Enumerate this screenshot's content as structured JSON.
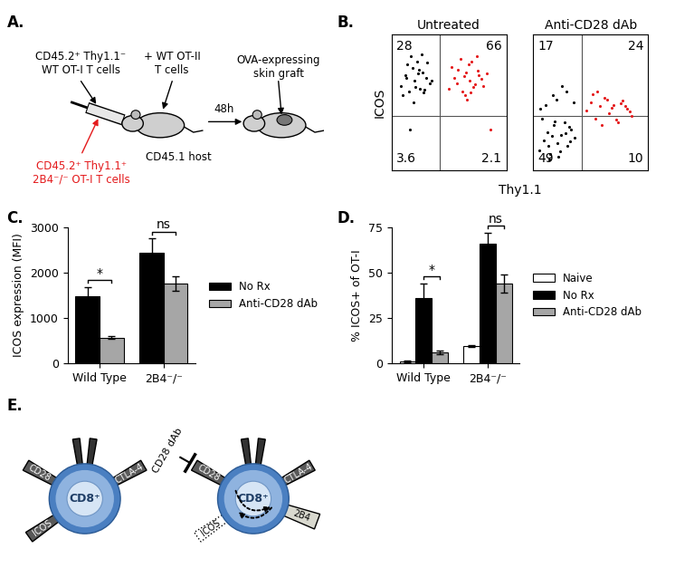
{
  "panel_labels": [
    "A.",
    "B.",
    "C.",
    "D.",
    "E."
  ],
  "diagram_a": {
    "wt_cells": [
      "CD45.2⁺ Thy1.1⁻",
      "WT OT-I T cells"
    ],
    "ko_cells": [
      "CD45.2⁺ Thy1.1⁺",
      "2B4⁻/⁻ OT-I T cells"
    ],
    "ko_color": "#e41a1c",
    "ot2_cells": [
      "+ WT OT-II",
      "T cells"
    ],
    "host": "CD45.1 host",
    "interval": "48h",
    "graft": [
      "OVA-expressing",
      "skin graft"
    ]
  },
  "panel_b": {
    "x_label": "Thy1.1",
    "y_label": "ICOS"
  },
  "chart_data": [
    {
      "type": "scatter",
      "title": "Untreated",
      "xlim": [
        0,
        100
      ],
      "ylim": [
        0,
        100
      ],
      "tick_labels": false,
      "gates": {
        "x": 42,
        "y": 40
      },
      "quadrant_labels": {
        "upper_left": 28,
        "upper_right": 66,
        "lower_left": 3.6,
        "lower_right": 2.1
      },
      "series": [
        {
          "color": "#000000",
          "x": [
            8,
            12,
            15,
            18,
            20,
            22,
            25,
            27,
            30,
            33,
            10,
            14,
            17,
            21,
            24,
            28,
            31,
            35,
            19,
            26,
            13,
            23,
            29,
            16
          ],
          "values": [
            62,
            70,
            58,
            75,
            66,
            80,
            60,
            72,
            68,
            64,
            55,
            78,
            84,
            61,
            74,
            57,
            79,
            66,
            50,
            85,
            68,
            71,
            59,
            30
          ]
        },
        {
          "color": "#e41a1c",
          "x": [
            50,
            55,
            58,
            62,
            65,
            68,
            70,
            73,
            76,
            80,
            52,
            60,
            64,
            67,
            71,
            75,
            78,
            83,
            57,
            69,
            74,
            63,
            66,
            86
          ],
          "values": [
            60,
            68,
            74,
            58,
            72,
            66,
            80,
            63,
            70,
            62,
            76,
            82,
            55,
            78,
            61,
            73,
            67,
            71,
            64,
            57,
            84,
            69,
            52,
            30
          ]
        }
      ]
    },
    {
      "type": "scatter",
      "title": "Anti-CD28 dAb",
      "xlim": [
        0,
        100
      ],
      "ylim": [
        0,
        100
      ],
      "tick_labels": false,
      "gates": {
        "x": 42,
        "y": 40
      },
      "quadrant_labels": {
        "upper_left": 17,
        "upper_right": 24,
        "lower_left": 49,
        "lower_right": 10
      },
      "series": [
        {
          "color": "#000000",
          "x": [
            5,
            9,
            12,
            15,
            18,
            21,
            24,
            27,
            30,
            33,
            36,
            8,
            14,
            19,
            23,
            28,
            32,
            11,
            17,
            25,
            6,
            20,
            29,
            35,
            13,
            22,
            31,
            16
          ],
          "values": [
            15,
            22,
            28,
            12,
            33,
            20,
            26,
            35,
            18,
            30,
            24,
            38,
            8,
            36,
            14,
            27,
            21,
            48,
            55,
            62,
            45,
            52,
            58,
            50,
            18,
            10,
            32,
            25
          ]
        },
        {
          "color": "#e41a1c",
          "x": [
            46,
            50,
            54,
            58,
            62,
            66,
            70,
            74,
            78,
            82,
            86,
            52,
            60,
            68,
            76,
            84,
            56,
            64,
            72,
            80
          ],
          "values": [
            44,
            50,
            38,
            47,
            53,
            42,
            48,
            35,
            51,
            45,
            40,
            56,
            33,
            46,
            49,
            43,
            58,
            52,
            37,
            47
          ]
        }
      ]
    },
    {
      "type": "bar",
      "y_label": "ICOS expression (MFI)",
      "categories": [
        "Wild Type",
        "2B4⁻/⁻"
      ],
      "ylim": [
        0,
        3000
      ],
      "yticks": [
        0,
        1000,
        2000,
        3000
      ],
      "legend": "right",
      "series": [
        {
          "name": "No Rx",
          "color": "#000000",
          "values": [
            1480,
            2430
          ],
          "errors": [
            200,
            320
          ]
        },
        {
          "name": "Anti-CD28 dAb",
          "color": "#a6a6a6",
          "values": [
            570,
            1760
          ],
          "errors": [
            30,
            150
          ]
        }
      ],
      "significance": [
        {
          "category": "Wild Type",
          "between": [
            "No Rx",
            "Anti-CD28 dAb"
          ],
          "text": "*"
        },
        {
          "category": "2B4⁻/⁻",
          "between": [
            "No Rx",
            "Anti-CD28 dAb"
          ],
          "text": "ns"
        }
      ]
    },
    {
      "type": "bar",
      "y_label": "% ICOS+ of OT-I",
      "categories": [
        "Wild Type",
        "2B4⁻/⁻"
      ],
      "ylim": [
        0,
        75
      ],
      "yticks": [
        0,
        25,
        50,
        75
      ],
      "legend": "right",
      "series": [
        {
          "name": "Naive",
          "color": "#ffffff",
          "values": [
            1,
            9.5
          ],
          "errors": [
            0.5,
            0.6
          ]
        },
        {
          "name": "No Rx",
          "color": "#000000",
          "values": [
            36,
            66
          ],
          "errors": [
            8,
            6
          ]
        },
        {
          "name": "Anti-CD28 dAb",
          "color": "#a6a6a6",
          "values": [
            6,
            44
          ],
          "errors": [
            1,
            5
          ]
        }
      ],
      "significance": [
        {
          "category": "Wild Type",
          "between": [
            "No Rx",
            "Anti-CD28 dAb"
          ],
          "text": "*"
        },
        {
          "category": "2B4⁻/⁻",
          "between": [
            "No Rx",
            "Anti-CD28 dAb"
          ],
          "text": "ns"
        }
      ]
    }
  ],
  "diagram_e": {
    "cells": [
      {
        "label": "CD8⁺",
        "receptors": [
          {
            "label": "CD28"
          },
          {
            "label": "CTLA-4"
          },
          {
            "label": "ICOS"
          }
        ]
      },
      {
        "label": "CD8⁺",
        "receptors": [
          {
            "label": "CD28",
            "blocker": "CD28 dAb"
          },
          {
            "label": "CTLA-4"
          },
          {
            "label": "ICOS",
            "line_style": "dotted"
          },
          {
            "label": "2B4",
            "color": "#d9d9cf"
          }
        ],
        "signal_path": [
          "CD28",
          "2B4",
          "ICOS"
        ]
      }
    ]
  }
}
